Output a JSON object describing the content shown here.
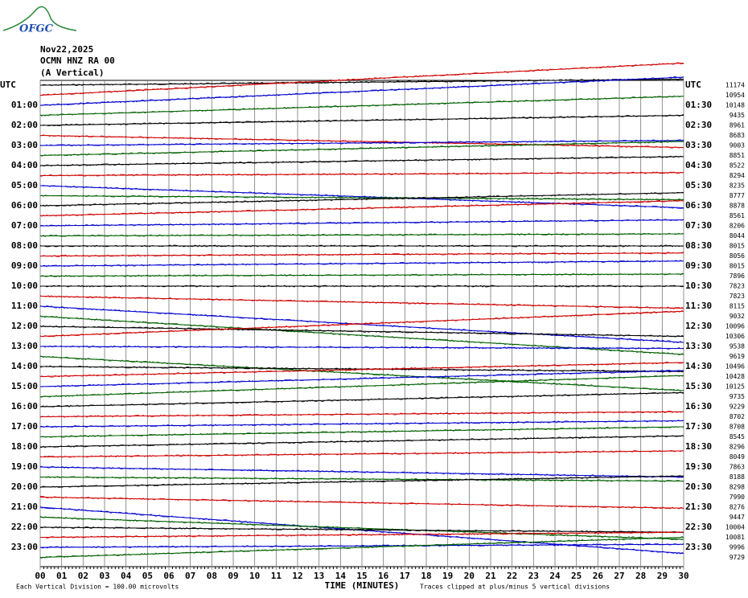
{
  "chart_data": {
    "type": "helicorder",
    "logo": "OFGC",
    "title_lines": [
      "Nov22,2025",
      "OCMN HNZ RA 00",
      "(A Vertical)"
    ],
    "left_labels": [
      "UTC",
      "01:00",
      "02:00",
      "03:00",
      "04:00",
      "05:00",
      "06:00",
      "07:00",
      "08:00",
      "09:00",
      "10:00",
      "11:00",
      "12:00",
      "13:00",
      "14:00",
      "15:00",
      "16:00",
      "17:00",
      "18:00",
      "19:00",
      "20:00",
      "21:00",
      "22:00",
      "23:00"
    ],
    "right_labels": [
      "UTC",
      "01:30",
      "02:30",
      "03:30",
      "04:30",
      "05:30",
      "06:30",
      "07:30",
      "08:30",
      "09:30",
      "10:30",
      "11:30",
      "12:30",
      "13:30",
      "14:30",
      "15:30",
      "16:30",
      "17:30",
      "18:30",
      "19:30",
      "20:30",
      "21:30",
      "22:30",
      "23:30"
    ],
    "xlabel": "TIME (MINUTES)",
    "scale_note": "Each Vertical Division =  100.00 microvolts",
    "clip_note": "Traces clipped at plus/minus 5 vertical divisions",
    "xlim": [
      0,
      30
    ],
    "xticks": [
      {
        "value": 0,
        "label": "00"
      },
      {
        "value": 1,
        "label": "01"
      },
      {
        "value": 2,
        "label": "02"
      },
      {
        "value": 3,
        "label": "03"
      },
      {
        "value": 4,
        "label": "04"
      },
      {
        "value": 5,
        "label": "05"
      },
      {
        "value": 6,
        "label": "06"
      },
      {
        "value": 7,
        "label": "07"
      },
      {
        "value": 8,
        "label": "08"
      },
      {
        "value": 9,
        "label": "09"
      },
      10,
      11,
      12,
      13,
      14,
      15,
      16,
      17,
      18,
      19,
      20,
      21,
      22,
      23,
      24,
      25,
      26,
      27,
      28,
      29,
      30
    ],
    "colors": [
      "#000000",
      "#d00000",
      "#0000d0",
      "#006000"
    ],
    "trace_counts": [
      11174,
      10954,
      10148,
      9435,
      8961,
      8683,
      9003,
      8851,
      8522,
      8294,
      8235,
      8777,
      8878,
      8561,
      8206,
      8044,
      8015,
      8056,
      8015,
      7896,
      7823,
      7823,
      8115,
      9032,
      10096,
      10306,
      9538,
      9619,
      10496,
      10428,
      10125,
      9735,
      9229,
      8702,
      8708,
      8545,
      8296,
      8049,
      7863,
      8188,
      8298,
      7990,
      8276,
      9447,
      10004,
      10081,
      9996,
      9729
    ],
    "trace_drift_end": [
      -0.6,
      -3.2,
      -2.8,
      -1.9,
      -1.0,
      1.2,
      -0.5,
      -1.4,
      -0.9,
      -0.3,
      2.2,
      0.4,
      -1.3,
      -1.5,
      -0.6,
      -0.2,
      0,
      -0.3,
      -0.5,
      -0.2,
      0,
      1.2,
      3.6,
      3.8,
      1.0,
      -2.5,
      0.2,
      3.4,
      0.5,
      -1.4,
      -1.6,
      -2.1,
      -1.4,
      -0.5,
      -0.6,
      -1,
      -1.1,
      -0.6,
      1,
      0.4,
      -1.1,
      1.1,
      4.6,
      2.2,
      0.5,
      -0.5,
      -0.3,
      -2.0
    ]
  }
}
